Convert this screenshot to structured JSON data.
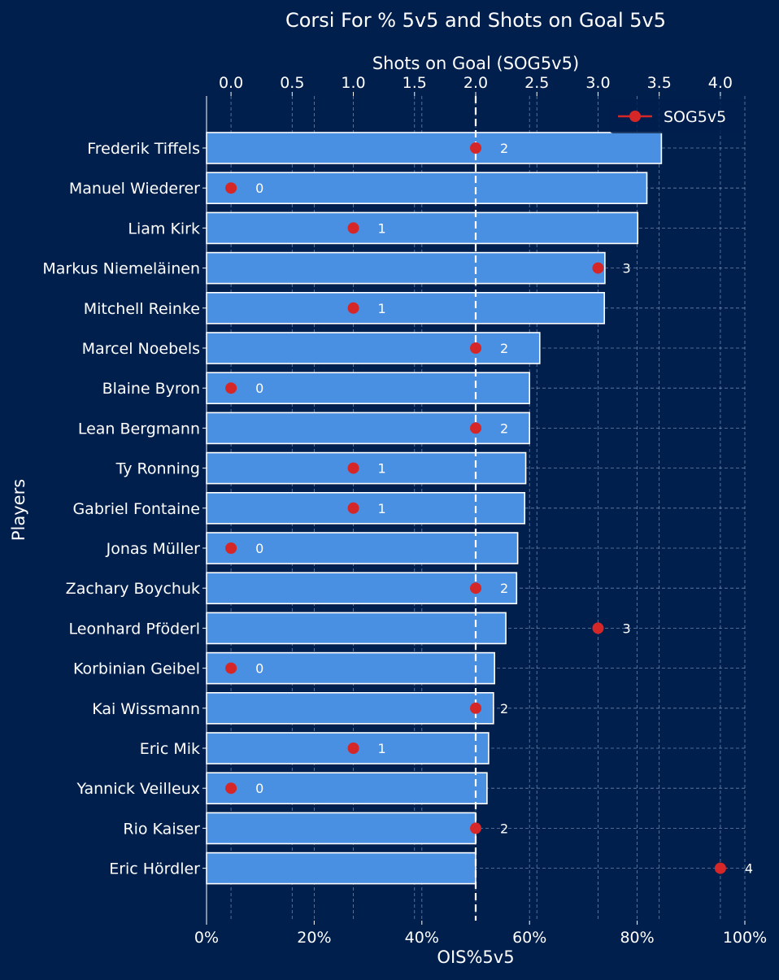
{
  "chart_data": {
    "type": "bar",
    "title": "Corsi For % 5v5 and Shots on Goal 5v5",
    "xlabel": "OIS%5v5",
    "ylabel": "Players",
    "x2label": "Shots on Goal (SOG5v5)",
    "xlim": [
      0,
      100
    ],
    "x2lim": [
      -0.2,
      4.2
    ],
    "x_ticks": [
      "0%",
      "20%",
      "40%",
      "60%",
      "80%",
      "100%"
    ],
    "x2_ticks": [
      "0.0",
      "0.5",
      "1.0",
      "1.5",
      "2.0",
      "2.5",
      "3.0",
      "3.5",
      "4.0"
    ],
    "grid": true,
    "legend": {
      "entries": [
        "SOG5v5"
      ],
      "position": "top-right"
    },
    "reference_line": {
      "axis": "x2",
      "value": 2.0,
      "style": "dashed"
    },
    "categories": [
      "Frederik Tiffels",
      "Manuel Wiederer",
      "Liam Kirk",
      "Markus Niemeläinen",
      "Mitchell Reinke",
      "Marcel Noebels",
      "Blaine Byron",
      "Lean Bergmann",
      "Ty Ronning",
      "Gabriel Fontaine",
      "Jonas Müller",
      "Zachary Boychuk",
      "Leonhard Pföderl",
      "Korbinian Geibel",
      "Kai Wissmann",
      "Eric Mik",
      "Yannick Veilleux",
      "Rio Kaiser",
      "Eric Hördler"
    ],
    "series": [
      {
        "name": "OIS%5v5",
        "kind": "bar",
        "values": [
          84.5,
          81.8,
          80.1,
          74.0,
          73.9,
          61.9,
          60.0,
          60.0,
          59.3,
          59.1,
          57.8,
          57.6,
          55.6,
          53.5,
          53.3,
          52.4,
          52.1,
          50.0,
          50.0
        ]
      },
      {
        "name": "SOG5v5",
        "kind": "point",
        "values": [
          2,
          0,
          1,
          3,
          1,
          2,
          0,
          2,
          1,
          1,
          0,
          2,
          3,
          0,
          2,
          1,
          0,
          2,
          4
        ],
        "labels": [
          "2",
          "0",
          "1",
          "3",
          "1",
          "2",
          "0",
          "2",
          "1",
          "1",
          "0",
          "2",
          "3",
          "0",
          "2",
          "1",
          "0",
          "2",
          "4"
        ]
      }
    ],
    "colors": {
      "background": "#001f4d",
      "bar_fill": "#4a90e2",
      "bar_edge": "#ffffff",
      "marker": "#d62728",
      "text": "#ffffff",
      "grid": "#8fa6c8",
      "reference_line": "#ffffff"
    }
  }
}
